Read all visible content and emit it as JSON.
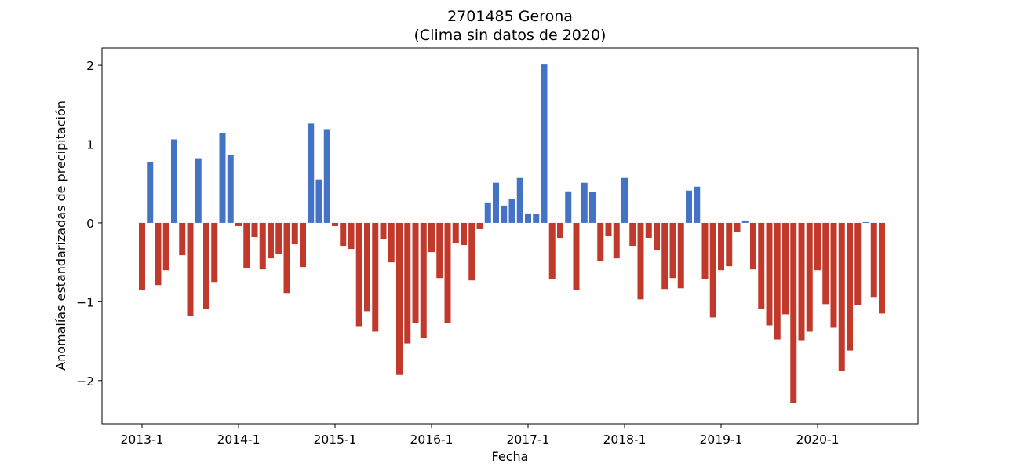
{
  "chart_data": {
    "type": "bar",
    "title": "2701485 Gerona",
    "subtitle": "(Clima sin datos de 2020)",
    "xlabel": "Fecha",
    "ylabel": "Anomalías estandarizadas de precipitación",
    "ylim": [
      -2.55,
      2.22
    ],
    "yticks": [
      -2,
      -1,
      0,
      1,
      2
    ],
    "ytick_labels": [
      "−2",
      "−1",
      "0",
      "1",
      "2"
    ],
    "xtick_labels": [
      "2013-1",
      "2014-1",
      "2015-1",
      "2016-1",
      "2017-1",
      "2018-1",
      "2019-1",
      "2020-1"
    ],
    "x_start": "2013-1",
    "grid": false,
    "positive_color": "#4472c4",
    "negative_color": "#c0392b",
    "values": [
      -0.85,
      0.77,
      -0.79,
      -0.6,
      1.06,
      -0.41,
      -1.18,
      0.82,
      -1.09,
      -0.75,
      1.14,
      0.86,
      -0.04,
      -0.57,
      -0.18,
      -0.59,
      -0.45,
      -0.39,
      -0.89,
      -0.27,
      -0.56,
      1.26,
      0.55,
      1.19,
      -0.04,
      -0.3,
      -0.33,
      -1.31,
      -1.12,
      -1.38,
      -0.2,
      -0.5,
      -1.93,
      -1.53,
      -1.27,
      -1.46,
      -0.37,
      -0.7,
      -1.27,
      -0.26,
      -0.28,
      -0.73,
      -0.08,
      0.26,
      0.51,
      0.22,
      0.3,
      0.57,
      0.12,
      0.11,
      2.01,
      -0.71,
      -0.19,
      0.4,
      -0.85,
      0.51,
      0.39,
      -0.49,
      -0.17,
      -0.45,
      0.57,
      -0.3,
      -0.97,
      -0.19,
      -0.34,
      -0.84,
      -0.7,
      -0.83,
      0.41,
      0.46,
      -0.71,
      -1.2,
      -0.6,
      -0.55,
      -0.12,
      0.03,
      -0.59,
      -1.09,
      -1.3,
      -1.48,
      -1.16,
      -2.29,
      -1.49,
      -1.38,
      -0.6,
      -1.03,
      -1.33,
      -1.88,
      -1.62,
      -1.04,
      0.01,
      -0.94,
      -1.15
    ]
  }
}
